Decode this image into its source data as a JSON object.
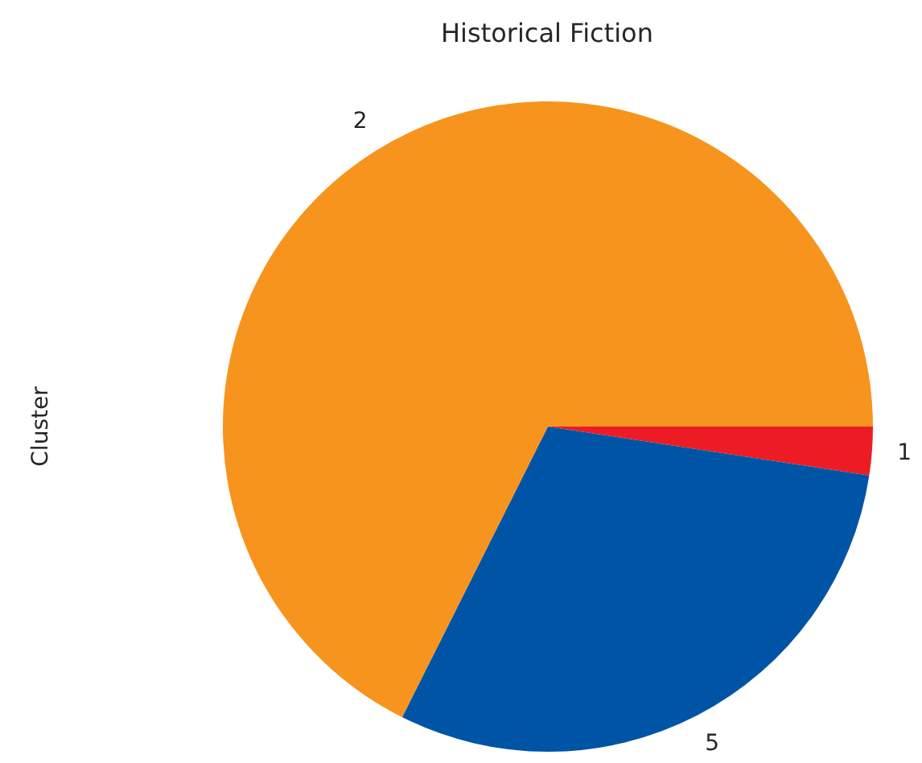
{
  "chart_data": {
    "type": "pie",
    "title": "Historical Fiction",
    "ylabel": "Cluster",
    "categories": [
      "2",
      "5",
      "1"
    ],
    "values": [
      67.6,
      30.0,
      2.4
    ],
    "colors": [
      "#f7941d",
      "#0054a6",
      "#ed1c24"
    ],
    "legend": false
  }
}
